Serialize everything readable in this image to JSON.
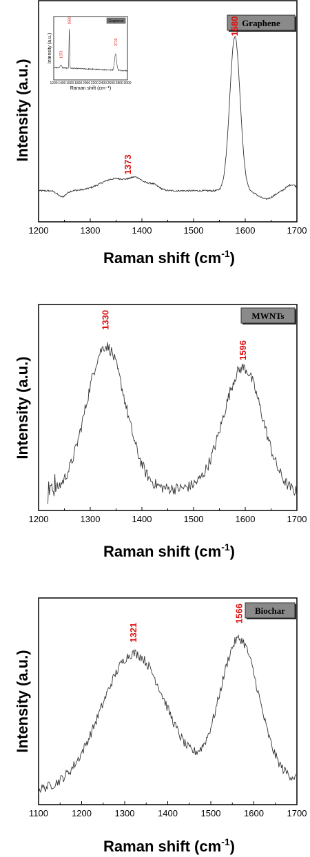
{
  "chart_data": [
    {
      "type": "line",
      "title": "",
      "legend": "Graphene",
      "xlabel": "Raman shift (cm",
      "xlabel_sup": "-1",
      "xlabel_close": ")",
      "ylabel": "Intensity (a.u.)",
      "xlim": [
        1200,
        1700
      ],
      "xticks": [
        "1200",
        "1300",
        "1400",
        "1500",
        "1600",
        "1700"
      ],
      "peak_labels": [
        {
          "x": 1373,
          "text": "1373",
          "y": 0.2
        },
        {
          "x": 1580,
          "text": "1580",
          "y": 0.88
        }
      ],
      "inset": {
        "legend": "Graphene",
        "xlabel": "Raman shift (cm⁻¹)",
        "ylabel": "Intensity (a.u.)",
        "xlim": [
          1200,
          3000
        ],
        "xticks": [
          "1200",
          "1400",
          "1600",
          "1800",
          "2000",
          "2200",
          "2400",
          "2600",
          "2800",
          "3000"
        ],
        "peak_labels": [
          "1373",
          "1580",
          "2710"
        ]
      }
    },
    {
      "type": "line",
      "title": "",
      "legend": "MWNTs",
      "xlabel": "Raman shift (cm",
      "xlabel_sup": "-1",
      "xlabel_close": ")",
      "ylabel": "Intensity (a.u.)",
      "xlim": [
        1200,
        1700
      ],
      "xticks": [
        "1200",
        "1300",
        "1400",
        "1500",
        "1600",
        "1700"
      ],
      "peak_labels": [
        {
          "x": 1330,
          "text": "1330",
          "y": 0.92
        },
        {
          "x": 1596,
          "text": "1596",
          "y": 0.76
        }
      ]
    },
    {
      "type": "line",
      "title": "",
      "legend": "Biochar",
      "xlabel": "Raman shift (cm",
      "xlabel_sup": "-1",
      "xlabel_close": ")",
      "ylabel": "Intensity (a.u.)",
      "xlim": [
        1100,
        1700
      ],
      "xticks": [
        "1100",
        "1200",
        "1300",
        "1400",
        "1500",
        "1600",
        "1700"
      ],
      "peak_labels": [
        {
          "x": 1321,
          "text": "1321",
          "y": 0.82
        },
        {
          "x": 1566,
          "text": "1566",
          "y": 0.92
        }
      ]
    }
  ]
}
